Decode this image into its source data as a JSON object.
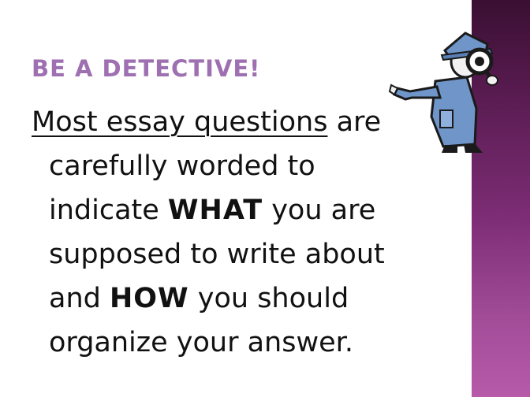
{
  "slide": {
    "title": "BE A DETECTIVE!",
    "body": {
      "underlined_phrase": "Most essay questions",
      "line1_rest": " are",
      "line2": "carefully worded to",
      "line3_pre": "indicate ",
      "emphasis_what": "WHAT",
      "line3_post": " you are",
      "line4": "supposed to write about",
      "line5_pre": "and ",
      "emphasis_how": "HOW",
      "line5_post": " you should",
      "line6": "organize your answer."
    },
    "illustration": {
      "icon": "detective-magnifier-icon",
      "colors": {
        "coat": "#6f95c9",
        "outline": "#1a1a1a",
        "skin": "#f2f2f2"
      }
    },
    "colors": {
      "title": "#9e6fb1",
      "text": "#111111",
      "band_top": "#3a0f33",
      "band_bottom": "#b65aa9"
    }
  }
}
